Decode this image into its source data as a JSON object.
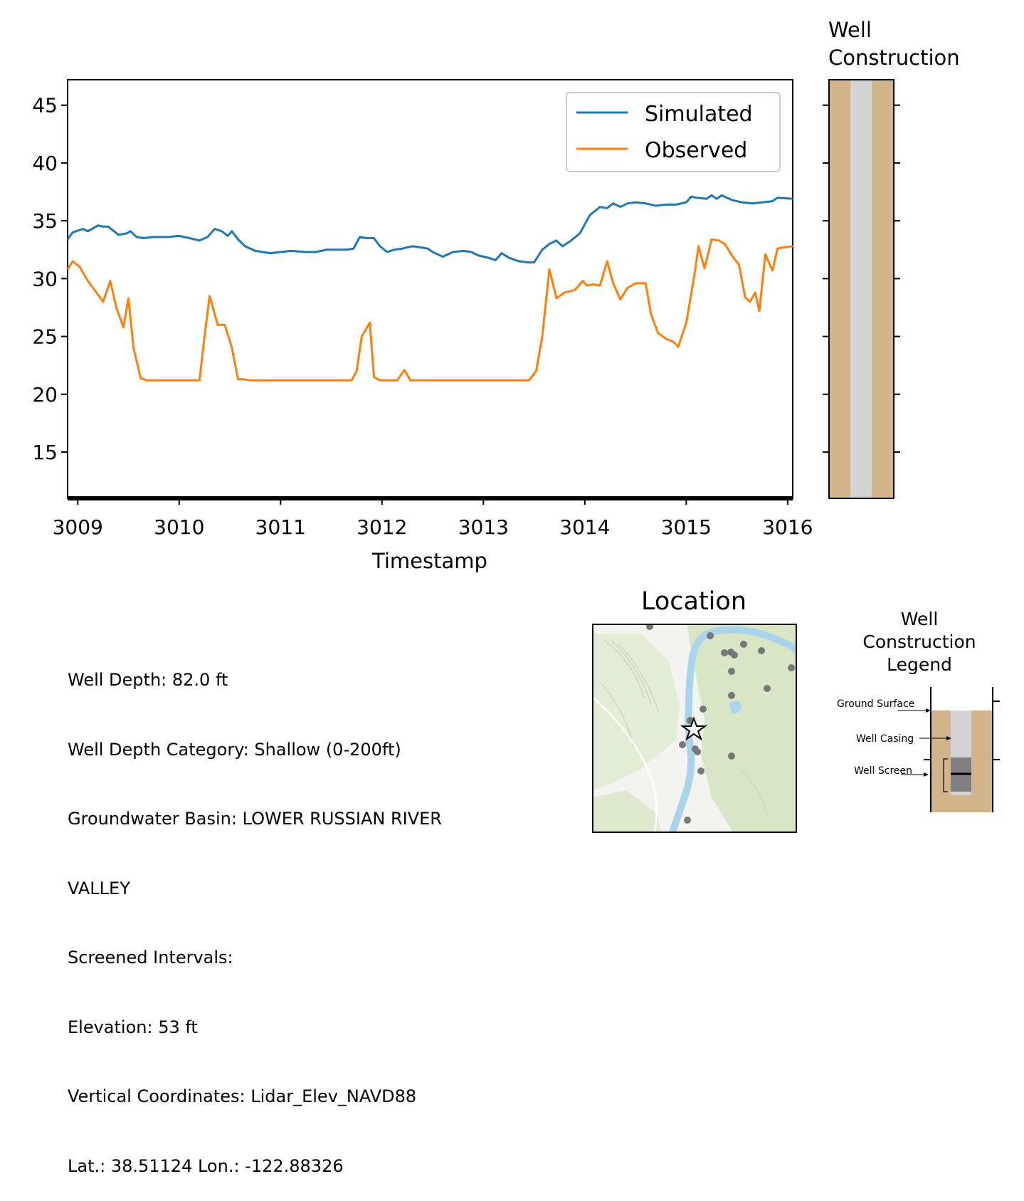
{
  "chart_data": {
    "type": "line",
    "xlabel": "Timestamp",
    "ylabel": "",
    "xlim": [
      3008.9,
      3016.05
    ],
    "ylim": [
      11,
      47.2
    ],
    "x_ticks": [
      3009,
      3010,
      3011,
      3012,
      3013,
      3014,
      3015,
      3016
    ],
    "y_ticks": [
      15,
      20,
      25,
      30,
      35,
      40,
      45
    ],
    "x_tick_labels": [
      "3009",
      "3010",
      "3011",
      "3012",
      "3013",
      "3014",
      "3015",
      "3016"
    ],
    "y_tick_labels": [
      "15",
      "20",
      "25",
      "30",
      "35",
      "40",
      "45"
    ],
    "legend_position": "top-right",
    "grid": false,
    "series": [
      {
        "name": "Simulated",
        "color": "#1f77b4",
        "x": [
          3008.9,
          3008.95,
          3009.05,
          3009.1,
          3009.2,
          3009.25,
          3009.3,
          3009.4,
          3009.48,
          3009.52,
          3009.58,
          3009.65,
          3009.75,
          3009.9,
          3010.0,
          3010.1,
          3010.2,
          3010.28,
          3010.35,
          3010.42,
          3010.48,
          3010.52,
          3010.58,
          3010.65,
          3010.75,
          3010.9,
          3011.0,
          3011.1,
          3011.25,
          3011.35,
          3011.45,
          3011.55,
          3011.65,
          3011.72,
          3011.78,
          3011.85,
          3011.92,
          3011.98,
          3012.05,
          3012.12,
          3012.2,
          3012.3,
          3012.38,
          3012.45,
          3012.5,
          3012.55,
          3012.6,
          3012.7,
          3012.8,
          3012.88,
          3012.95,
          3013.05,
          3013.12,
          3013.18,
          3013.25,
          3013.35,
          3013.45,
          3013.5,
          3013.58,
          3013.65,
          3013.72,
          3013.78,
          3013.85,
          3013.95,
          3014.05,
          3014.15,
          3014.22,
          3014.28,
          3014.35,
          3014.42,
          3014.5,
          3014.6,
          3014.7,
          3014.8,
          3014.9,
          3015.0,
          3015.05,
          3015.1,
          3015.2,
          3015.25,
          3015.3,
          3015.35,
          3015.4,
          3015.45,
          3015.55,
          3015.65,
          3015.75,
          3015.85,
          3015.9,
          3016.05
        ],
        "y": [
          33.4,
          34.0,
          34.3,
          34.1,
          34.6,
          34.5,
          34.5,
          33.8,
          33.9,
          34.1,
          33.6,
          33.5,
          33.6,
          33.6,
          33.7,
          33.5,
          33.3,
          33.6,
          34.3,
          34.1,
          33.7,
          34.1,
          33.4,
          32.8,
          32.4,
          32.2,
          32.3,
          32.4,
          32.3,
          32.3,
          32.5,
          32.5,
          32.5,
          32.6,
          33.6,
          33.5,
          33.5,
          32.8,
          32.3,
          32.5,
          32.6,
          32.8,
          32.7,
          32.6,
          32.3,
          32.1,
          31.9,
          32.3,
          32.4,
          32.3,
          32.0,
          31.8,
          31.6,
          32.2,
          31.8,
          31.5,
          31.4,
          31.4,
          32.5,
          33.0,
          33.3,
          32.8,
          33.2,
          33.9,
          35.5,
          36.2,
          36.1,
          36.5,
          36.2,
          36.5,
          36.6,
          36.5,
          36.3,
          36.4,
          36.4,
          36.6,
          37.1,
          37.0,
          36.9,
          37.2,
          36.9,
          37.2,
          37.0,
          36.8,
          36.6,
          36.5,
          36.6,
          36.7,
          37.0,
          36.9
        ]
      },
      {
        "name": "Observed",
        "color": "#ff7f0e",
        "x": [
          3008.9,
          3008.95,
          3009.02,
          3009.1,
          3009.25,
          3009.32,
          3009.38,
          3009.45,
          3009.5,
          3009.55,
          3009.62,
          3009.68,
          3010.0,
          3010.2,
          3010.25,
          3010.3,
          3010.38,
          3010.45,
          3010.52,
          3010.58,
          3010.63,
          3010.7,
          3011.7,
          3011.75,
          3011.8,
          3011.88,
          3011.92,
          3011.98,
          3012.05,
          3012.15,
          3012.22,
          3012.28,
          3012.35,
          3012.45,
          3012.6,
          3013.0,
          3013.2,
          3013.45,
          3013.52,
          3013.58,
          3013.65,
          3013.72,
          3013.8,
          3013.9,
          3013.98,
          3014.02,
          3014.08,
          3014.15,
          3014.22,
          3014.28,
          3014.35,
          3014.42,
          3014.5,
          3014.6,
          3014.65,
          3014.72,
          3014.8,
          3014.88,
          3014.92,
          3015.0,
          3015.08,
          3015.12,
          3015.18,
          3015.25,
          3015.32,
          3015.38,
          3015.45,
          3015.52,
          3015.58,
          3015.63,
          3015.68,
          3015.72,
          3015.78,
          3015.85,
          3015.9,
          3015.96,
          3016.05
        ],
        "y": [
          30.8,
          31.5,
          31.0,
          29.8,
          28.0,
          29.8,
          27.5,
          25.8,
          28.3,
          24.0,
          21.4,
          21.2,
          21.2,
          21.2,
          25.0,
          28.5,
          26.0,
          26.0,
          24.0,
          21.3,
          21.3,
          21.2,
          21.2,
          22.0,
          25.0,
          26.2,
          21.5,
          21.2,
          21.2,
          21.2,
          22.1,
          21.2,
          21.2,
          21.2,
          21.2,
          21.2,
          21.2,
          21.2,
          22.0,
          25.0,
          30.8,
          28.3,
          28.8,
          29.0,
          29.8,
          29.4,
          29.5,
          29.4,
          31.5,
          29.6,
          28.2,
          29.2,
          29.6,
          29.6,
          27.0,
          25.3,
          24.8,
          24.5,
          24.1,
          26.2,
          30.3,
          32.8,
          30.9,
          33.4,
          33.3,
          33.0,
          32.0,
          31.2,
          28.4,
          28.0,
          28.8,
          27.2,
          32.1,
          30.7,
          32.6,
          32.7,
          32.8
        ]
      }
    ]
  },
  "well_construction_title_lines": [
    "Well",
    "Construction"
  ],
  "well_construction_colors": {
    "ground": "#d2b48c",
    "casing": "#d3d3d3"
  },
  "location_title": "Location",
  "info_lines": [
    "Well Depth: 82.0 ft",
    "Well Depth Category: Shallow (0-200ft)",
    "Groundwater Basin: LOWER RUSSIAN RIVER",
    "VALLEY",
    "Screened Intervals:",
    "Elevation: 53 ft",
    "Vertical Coordinates: Lidar_Elev_NAVD88",
    "Lat.: 38.51124 Lon.: -122.88326"
  ],
  "legend_panel": {
    "title_lines": [
      "Well",
      "Construction",
      "Legend"
    ],
    "labels": [
      "Ground Surface",
      "Well Casing",
      "Well Screen"
    ]
  }
}
